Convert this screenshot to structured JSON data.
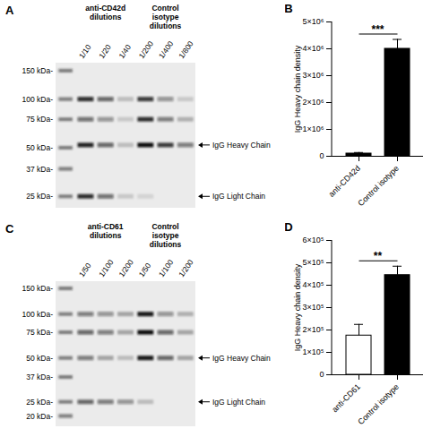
{
  "chart_data": [
    {
      "type": "blot",
      "panel": "A",
      "markers": [
        {
          "value": 150,
          "label": "150 kDa-"
        },
        {
          "value": 100,
          "label": "100 kDa-"
        },
        {
          "value": 75,
          "label": "75 kDa-"
        },
        {
          "value": 50,
          "label": "50 kDa-"
        },
        {
          "value": 37,
          "label": "37 kDa-"
        },
        {
          "value": 25,
          "label": "25 kDa-"
        }
      ],
      "groups": [
        {
          "label": "anti-CD42d dilutions",
          "lanes": [
            {
              "label": "1/10",
              "bands": [
                [
                  100,
                  0.85
                ],
                [
                  75,
                  0.55
                ],
                [
                  52,
                  0.9
                ],
                [
                  25,
                  0.85
                ]
              ]
            },
            {
              "label": "1/20",
              "bands": [
                [
                  100,
                  0.6
                ],
                [
                  75,
                  0.4
                ],
                [
                  52,
                  0.6
                ],
                [
                  25,
                  0.55
                ]
              ]
            },
            {
              "label": "1/40",
              "bands": [
                [
                  100,
                  0.2
                ],
                [
                  75,
                  0.15
                ],
                [
                  52,
                  0.2
                ],
                [
                  25,
                  0.15
                ]
              ]
            }
          ]
        },
        {
          "label": "Control isotype dilutions",
          "lanes": [
            {
              "label": "1/200",
              "bands": [
                [
                  100,
                  0.8
                ],
                [
                  75,
                  0.85
                ],
                [
                  52,
                  1
                ],
                [
                  25,
                  0.1
                ]
              ]
            },
            {
              "label": "1/400",
              "bands": [
                [
                  100,
                  0.4
                ],
                [
                  75,
                  0.5
                ],
                [
                  52,
                  0.8
                ]
              ]
            },
            {
              "label": "1/800",
              "bands": [
                [
                  100,
                  0.15
                ],
                [
                  75,
                  0.25
                ],
                [
                  52,
                  0.5
                ]
              ]
            }
          ]
        }
      ],
      "arrows": [
        {
          "label": "IgG Heavy Chain",
          "kDa": 52
        },
        {
          "label": "IgG Light Chain",
          "kDa": 25
        }
      ]
    },
    {
      "type": "bar",
      "panel": "B",
      "ylabel": "IgG Heavy chain density",
      "categories": [
        "anti-CD42d",
        "Control isotype"
      ],
      "values": [
        100000,
        4000000
      ],
      "errors": [
        40000,
        350000
      ],
      "colors": [
        "#000000",
        "#000000"
      ],
      "ylim": [
        0,
        5000000
      ],
      "yticks": [
        0,
        {
          "value": 1000000,
          "label": "1×10⁶"
        },
        {
          "value": 2000000,
          "label": "2×10⁶"
        },
        {
          "value": 3000000,
          "label": "3×10⁶"
        },
        {
          "value": 4000000,
          "label": "4×10⁶"
        },
        {
          "value": 5000000,
          "label": "5×10⁶"
        }
      ],
      "significance": "***"
    },
    {
      "type": "blot",
      "panel": "C",
      "markers": [
        {
          "value": 150,
          "label": "150 kDa-"
        },
        {
          "value": 100,
          "label": "100 kDa-"
        },
        {
          "value": 75,
          "label": "75 kDa-"
        },
        {
          "value": 50,
          "label": "50 kDa-"
        },
        {
          "value": 37,
          "label": "37 kDa-"
        },
        {
          "value": 25,
          "label": "25 kDa-"
        },
        {
          "value": 20,
          "label": "20 kDa-"
        }
      ],
      "groups": [
        {
          "label": "anti-CD61 dilutions",
          "lanes": [
            {
              "label": "1/50",
              "bands": [
                [
                  100,
                  0.5
                ],
                [
                  75,
                  0.6
                ],
                [
                  50,
                  0.5
                ],
                [
                  25,
                  0.6
                ]
              ]
            },
            {
              "label": "1/100",
              "bands": [
                [
                  100,
                  0.4
                ],
                [
                  75,
                  0.5
                ],
                [
                  50,
                  0.3
                ],
                [
                  25,
                  0.5
                ]
              ]
            },
            {
              "label": "1/200",
              "bands": [
                [
                  100,
                  0.3
                ],
                [
                  75,
                  0.3
                ],
                [
                  50,
                  0.2
                ],
                [
                  25,
                  0.4
                ]
              ]
            }
          ]
        },
        {
          "label": "Control isotype dilutions",
          "lanes": [
            {
              "label": "1/50",
              "bands": [
                [
                  100,
                  0.95
                ],
                [
                  75,
                  1
                ],
                [
                  50,
                  0.95
                ],
                [
                  25,
                  0.2
                ]
              ]
            },
            {
              "label": "1/100",
              "bands": [
                [
                  100,
                  0.4
                ],
                [
                  75,
                  0.6
                ],
                [
                  50,
                  0.6
                ]
              ]
            },
            {
              "label": "1/200",
              "bands": [
                [
                  100,
                  0.25
                ],
                [
                  75,
                  0.3
                ],
                [
                  50,
                  0.3
                ]
              ]
            }
          ]
        }
      ],
      "arrows": [
        {
          "label": "IgG Heavy Chain",
          "kDa": 50
        },
        {
          "label": "IgG Light Chain",
          "kDa": 25
        }
      ]
    },
    {
      "type": "bar",
      "panel": "D",
      "ylabel": "IgG Heavy chain density",
      "categories": [
        "anti-CD61",
        "Control isotype"
      ],
      "values": [
        175000,
        445000
      ],
      "errors": [
        50000,
        40000
      ],
      "colors": [
        "#ffffff",
        "#000000"
      ],
      "ylim": [
        0,
        600000
      ],
      "yticks": [
        0,
        {
          "value": 100000,
          "label": "1×10⁵"
        },
        {
          "value": 200000,
          "label": "2×10⁵"
        },
        {
          "value": 300000,
          "label": "3×10⁵"
        },
        {
          "value": 400000,
          "label": "4×10⁵"
        },
        {
          "value": 500000,
          "label": "5×10⁵"
        },
        {
          "value": 600000,
          "label": "6×10⁵"
        }
      ],
      "significance": "**"
    }
  ]
}
